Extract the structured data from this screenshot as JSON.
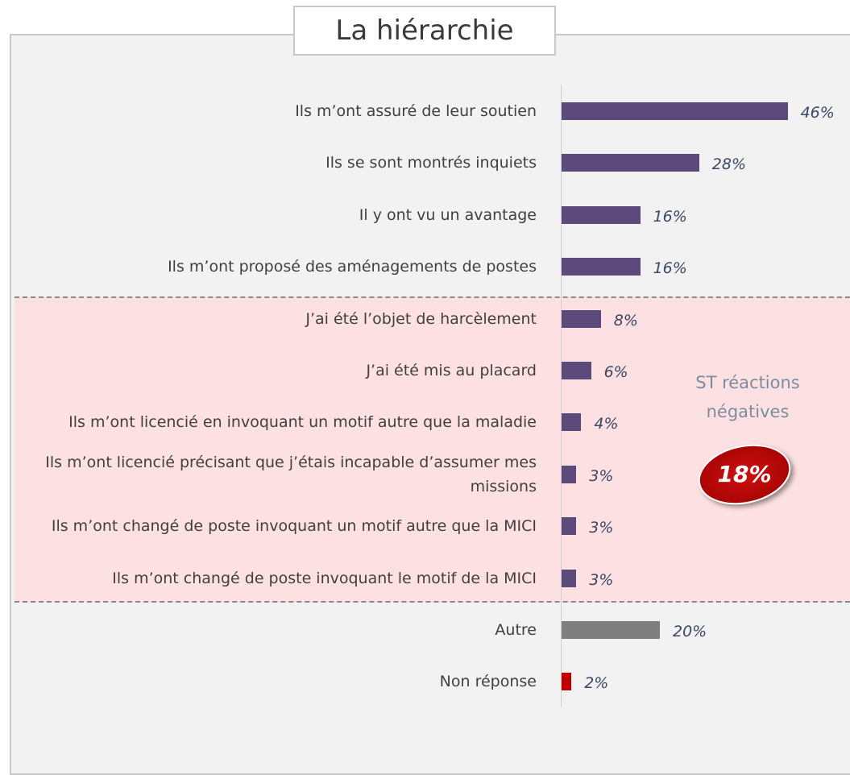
{
  "chart_data": {
    "type": "bar",
    "orientation": "horizontal",
    "title": "La hiérarchie",
    "categories": [
      "Ils m’ont assuré de leur soutien",
      "Ils se sont montrés inquiets",
      "Il y ont vu un avantage",
      "Ils m’ont proposé des aménagements de postes",
      "J’ai été l’objet de harcèlement",
      "J’ai été mis au placard",
      "Ils m’ont licencié en invoquant un motif autre que la maladie",
      "Ils m’ont licencié précisant que j’étais incapable d’assumer mes missions",
      "Ils m’ont changé de poste invoquant un motif autre que la MICI",
      "Ils m’ont changé de poste invoquant le motif de la MICI",
      "Autre",
      "Non réponse"
    ],
    "values": [
      46,
      28,
      16,
      16,
      8,
      6,
      4,
      3,
      3,
      3,
      20,
      2
    ],
    "value_labels": [
      "46%",
      "28%",
      "16%",
      "16%",
      "8%",
      "6%",
      "4%",
      "3%",
      "3%",
      "3%",
      "20%",
      "2%"
    ],
    "colors": [
      "#5b4a7a",
      "#5b4a7a",
      "#5b4a7a",
      "#5b4a7a",
      "#5b4a7a",
      "#5b4a7a",
      "#5b4a7a",
      "#5b4a7a",
      "#5b4a7a",
      "#5b4a7a",
      "#7f7f7f",
      "#c00000"
    ],
    "annotation": {
      "text": "ST réactions négatives",
      "value": 18,
      "value_label": "18%"
    }
  }
}
